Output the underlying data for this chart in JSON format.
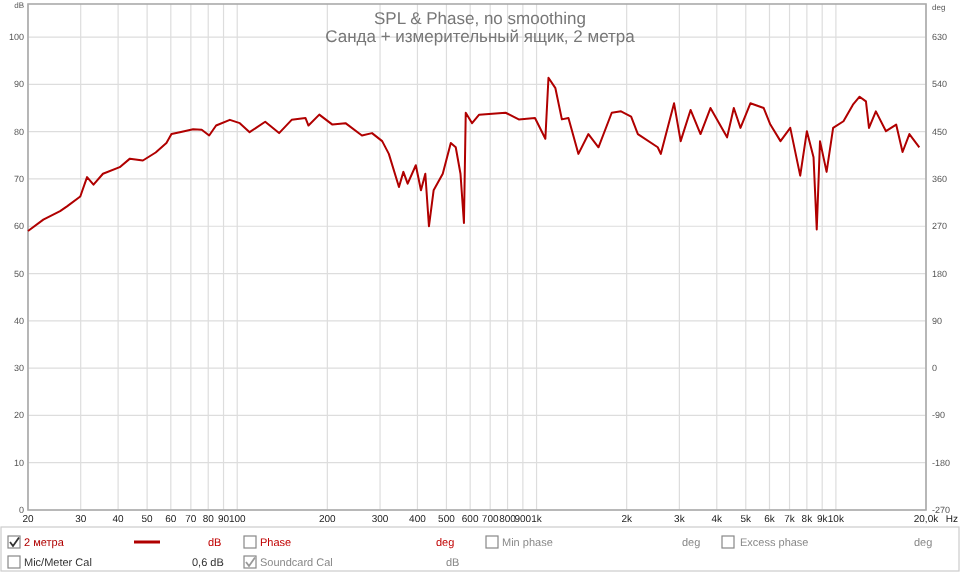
{
  "chart_data": {
    "type": "line",
    "title": "SPL & Phase, no smoothing",
    "subtitle": "Санда + измерительный ящик, 2 метра",
    "xlabel": "Hz",
    "ylabel": "dB",
    "y2label": "deg",
    "log": "x",
    "grid": true,
    "legend": "bottom",
    "marker": "none",
    "line_style": "solid",
    "xlim": [
      20,
      20000
    ],
    "xticks": [
      20,
      30,
      40,
      50,
      60,
      70,
      80,
      90,
      100,
      200,
      300,
      400,
      500,
      600,
      700,
      800,
      900,
      {
        "value": 1000,
        "label": "1k"
      },
      {
        "value": 2000,
        "label": "2k"
      },
      {
        "value": 3000,
        "label": "3k"
      },
      {
        "value": 4000,
        "label": "4k"
      },
      {
        "value": 5000,
        "label": "5k"
      },
      {
        "value": 6000,
        "label": "6k"
      },
      {
        "value": 7000,
        "label": "7k"
      },
      {
        "value": 8000,
        "label": "8k"
      },
      {
        "value": 9000,
        "label": "9k"
      },
      {
        "value": 10000,
        "label": "10k"
      },
      {
        "value": 20000,
        "label": "20,0k"
      }
    ],
    "ylim": [
      0,
      107
    ],
    "yticks": [
      0,
      10,
      20,
      30,
      40,
      50,
      60,
      70,
      80,
      90,
      100
    ],
    "y2lim": [
      -270,
      693
    ],
    "y2ticks": [
      -270,
      -180,
      -90,
      0,
      90,
      180,
      270,
      360,
      450,
      540,
      630
    ],
    "annotations": [
      "dB",
      "Phase",
      "deg",
      "Min phase",
      "deg",
      "Excess phase",
      "deg",
      "Mic/Meter Cal",
      "0,6 dB",
      "Soundcard Cal",
      "dB"
    ],
    "series": [
      {
        "name": "2 метра",
        "color": "#b00000",
        "x": [
          20,
          22.5,
          25.6,
          27,
          29.9,
          31.5,
          33.1,
          35.6,
          40.5,
          43.8,
          48.4,
          53.4,
          58,
          60.3,
          64.3,
          71.2,
          76.1,
          80.6,
          85,
          94.5,
          102,
          110,
          124,
          138,
          152,
          169,
          173,
          188,
          208,
          230,
          261,
          282,
          305,
          321,
          347,
          359,
          371,
          395,
          411,
          425,
          437,
          453,
          486,
          517,
          537,
          557,
          572,
          580,
          609,
          643,
          788,
          872,
          988,
          1070,
          1096,
          1156,
          1215,
          1278,
          1380,
          1490,
          1610,
          1783,
          1915,
          2070,
          2180,
          2540,
          2600,
          2880,
          3030,
          3270,
          3530,
          3810,
          4330,
          4560,
          4800,
          5180,
          5740,
          6040,
          6530,
          7040,
          7600,
          8000,
          8420,
          8630,
          8850,
          9310,
          9790,
          10600,
          11400,
          12000,
          12600,
          12900,
          13600,
          14700,
          15900,
          16700,
          17600,
          19000
        ],
        "values": [
          59.0,
          61.4,
          63.2,
          64.2,
          66.3,
          70.4,
          68.8,
          71.1,
          72.5,
          74.3,
          73.9,
          75.6,
          77.6,
          79.5,
          79.9,
          80.5,
          80.4,
          79.2,
          81.3,
          82.5,
          81.8,
          79.9,
          82.1,
          79.7,
          82.5,
          82.9,
          81.3,
          83.6,
          81.5,
          81.8,
          79.2,
          79.7,
          78.0,
          75.3,
          68.3,
          71.5,
          69.0,
          72.9,
          67.6,
          71.1,
          60.0,
          67.6,
          71.1,
          77.6,
          76.7,
          71.1,
          60.7,
          84.0,
          81.8,
          83.6,
          84.0,
          82.6,
          82.9,
          78.5,
          91.4,
          89.2,
          82.6,
          82.9,
          75.3,
          79.5,
          76.7,
          84.0,
          84.3,
          83.2,
          79.5,
          76.7,
          75.3,
          86.0,
          78.0,
          84.6,
          79.5,
          85.0,
          78.8,
          85.0,
          80.8,
          86.0,
          85.0,
          81.5,
          78.0,
          80.8,
          70.7,
          80.1,
          74.6,
          59.3,
          78.0,
          71.5,
          80.8,
          82.2,
          85.7,
          87.4,
          86.4,
          80.8,
          84.3,
          80.1,
          81.5,
          75.7,
          79.5,
          76.7
        ]
      }
    ]
  }
}
